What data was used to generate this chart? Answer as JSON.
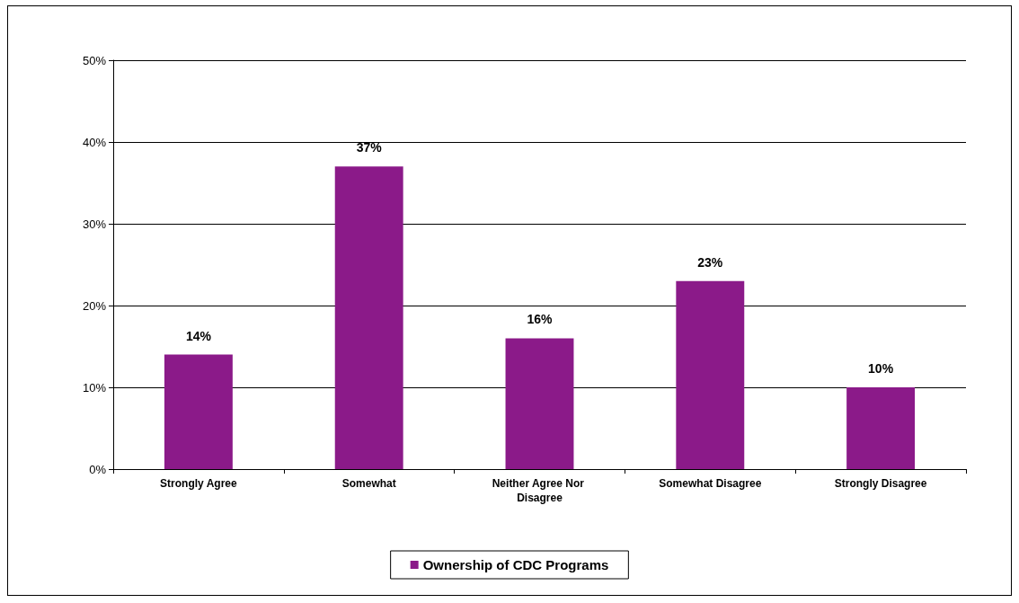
{
  "chart_data": {
    "type": "bar",
    "categories": [
      "Strongly Agree",
      "Somewhat",
      "Neither Agree Nor Disagree",
      "Somewhat Disagree",
      "Strongly Disagree"
    ],
    "series": [
      {
        "name": "Ownership of CDC Programs",
        "color": "#8b1a89",
        "values": [
          14,
          37,
          16,
          23,
          10
        ],
        "value_labels": [
          "14%",
          "37%",
          "16%",
          "23%",
          "10%"
        ]
      }
    ],
    "ylim": [
      0,
      50
    ],
    "yticks": [
      {
        "value": 0,
        "label": "0%"
      },
      {
        "value": 10,
        "label": "10%"
      },
      {
        "value": 20,
        "label": "20%"
      },
      {
        "value": 30,
        "label": "30%"
      },
      {
        "value": 40,
        "label": "40%"
      },
      {
        "value": 50,
        "label": "50%"
      }
    ],
    "grid": "y",
    "legend": "bottom"
  }
}
